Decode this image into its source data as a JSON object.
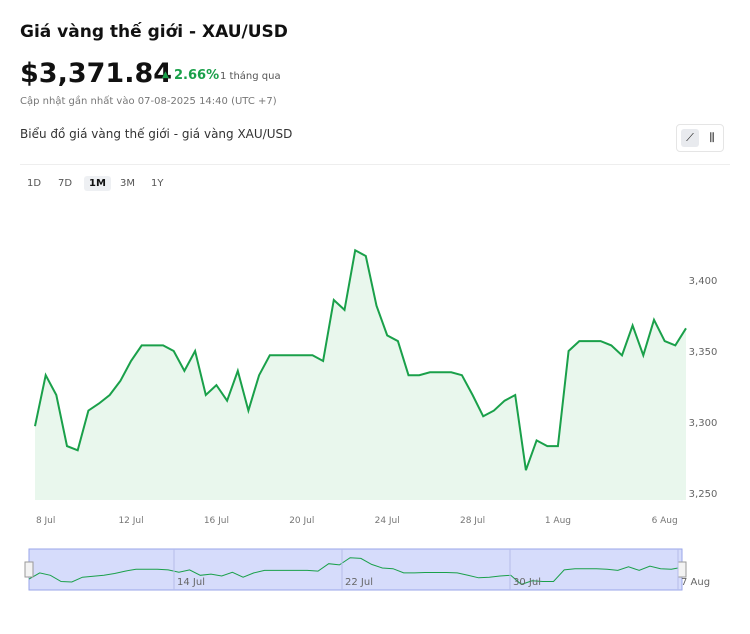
{
  "header": {
    "title": "Giá vàng thế giới - XAU/USD",
    "price": "$3,371.84",
    "change": "2.66%",
    "period": "1 tháng qua",
    "updated": "Cập nhật gần nhất vào 07-08-2025 14:40 (UTC +7)"
  },
  "chart_data": {
    "type": "line",
    "title": "Biểu đồ giá vàng thế giới - giá vàng XAU/USD",
    "ranges": [
      "1D",
      "7D",
      "1M",
      "3M",
      "1Y"
    ],
    "active_range": "1M",
    "categories": [
      null,
      "8 Jul",
      null,
      null,
      null,
      null,
      null,
      null,
      null,
      "12 Jul",
      null,
      null,
      null,
      null,
      null,
      null,
      null,
      "16 Jul",
      null,
      null,
      null,
      null,
      null,
      null,
      null,
      "20 Jul",
      null,
      null,
      null,
      null,
      null,
      null,
      null,
      "24 Jul",
      null,
      null,
      null,
      null,
      null,
      null,
      null,
      "28 Jul",
      null,
      null,
      null,
      null,
      null,
      null,
      null,
      "1 Aug",
      null,
      null,
      null,
      null,
      null,
      null,
      null,
      null,
      null,
      "6 Aug",
      null,
      null
    ],
    "series": [
      {
        "color": "#1aa04a",
        "values": [
          3297,
          3333,
          3319,
          3283,
          3280,
          3308,
          3313,
          3319,
          3329,
          3343,
          3354,
          3354,
          3354,
          3350,
          3336,
          3350,
          3319,
          3326,
          3315,
          3336,
          3308,
          3333,
          3347,
          3347,
          3347,
          3347,
          3347,
          3343,
          3386,
          3379,
          3421,
          3417,
          3382,
          3361,
          3357,
          3333,
          3333,
          3335,
          3335,
          3335,
          3333,
          3319,
          3304,
          3308,
          3315,
          3319,
          3266,
          3287,
          3283,
          3283,
          3350,
          3357,
          3357,
          3357,
          3354,
          3347,
          3368,
          3347,
          3372,
          3357,
          3354,
          3366
        ]
      }
    ],
    "ylim": [
      3245,
      3460
    ],
    "yticks": [
      {
        "value": 3250,
        "label": "3,250"
      },
      {
        "value": 3300,
        "label": "3,300"
      },
      {
        "value": 3350,
        "label": "3,350"
      },
      {
        "value": 3400,
        "label": "3,400"
      }
    ],
    "navigator_labels": [
      "14 Jul",
      "22 Jul",
      "30 Jul",
      "7 Aug"
    ]
  }
}
